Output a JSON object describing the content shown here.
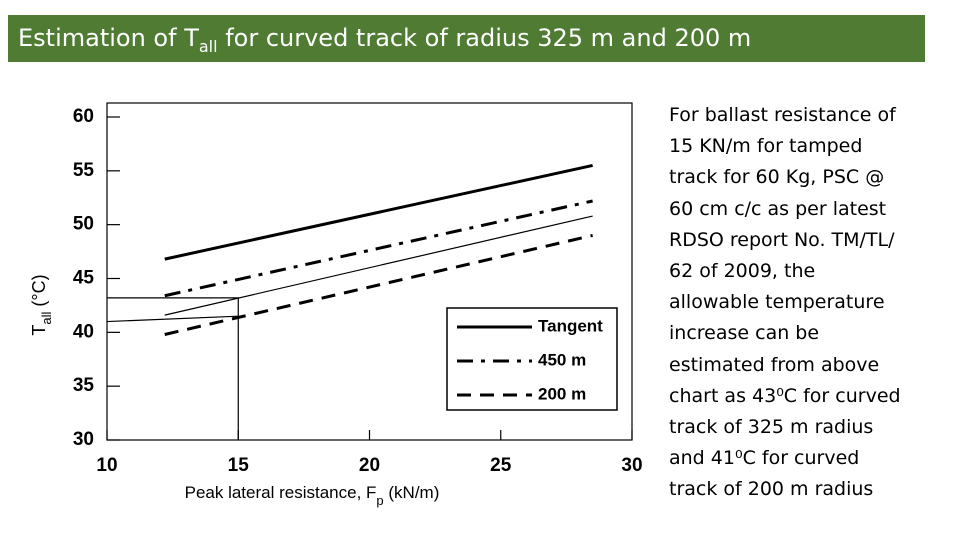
{
  "header": {
    "title_parts": [
      "Estimation of T",
      "all",
      " for curved track of radius 325 m and 200 m"
    ]
  },
  "chart_data": {
    "type": "line",
    "ylabel_parts": [
      "T",
      "all",
      " (°C)"
    ],
    "xlabel_parts": [
      "Peak lateral resistance, F",
      "p",
      " (kN/m)"
    ],
    "xlim": [
      10,
      30
    ],
    "ylim": [
      30,
      61.3
    ],
    "xticks": [
      10,
      15,
      20,
      25,
      30
    ],
    "yticks": [
      30,
      35,
      40,
      45,
      50,
      55,
      60
    ],
    "legend": "lower right",
    "series": [
      {
        "name": "Tangent",
        "color": "#000000",
        "style": "solid",
        "width": 3,
        "x": [
          12.2,
          28.5
        ],
        "values": [
          46.8,
          55.5
        ]
      },
      {
        "name": "450 m",
        "color": "#000000",
        "style": "dashdot",
        "width": 3,
        "x": [
          12.2,
          28.5
        ],
        "values": [
          43.4,
          52.2
        ]
      },
      {
        "name": "200 m",
        "color": "#000000",
        "style": "dashed",
        "width": 3,
        "x": [
          12.2,
          28.5
        ],
        "values": [
          39.8,
          49.0
        ]
      },
      {
        "color": "#000000",
        "style": "solid",
        "width": 1.2,
        "x": [
          12.2,
          28.5
        ],
        "values": [
          41.6,
          50.8
        ]
      },
      {
        "color": "#000000",
        "style": "solid",
        "width": 1.2,
        "x": [
          10,
          15,
          15
        ],
        "values": [
          43.2,
          43.2,
          30
        ]
      },
      {
        "color": "#000000",
        "style": "solid",
        "width": 1.2,
        "x": [
          10,
          15
        ],
        "values": [
          41.0,
          41.5
        ]
      }
    ]
  },
  "body": {
    "lines": [
      "For ballast resistance of",
      "15 KN/m for tamped",
      "track for 60 Kg, PSC @",
      "60 cm c/c as per latest",
      "RDSO report No. TM/TL/",
      "62 of 2009, the",
      "allowable temperature",
      "increase can be",
      "estimated from above",
      "chart as 43⁰C for curved",
      "track of 325 m radius",
      "and 41⁰C for curved",
      "track of 200 m radius"
    ]
  }
}
